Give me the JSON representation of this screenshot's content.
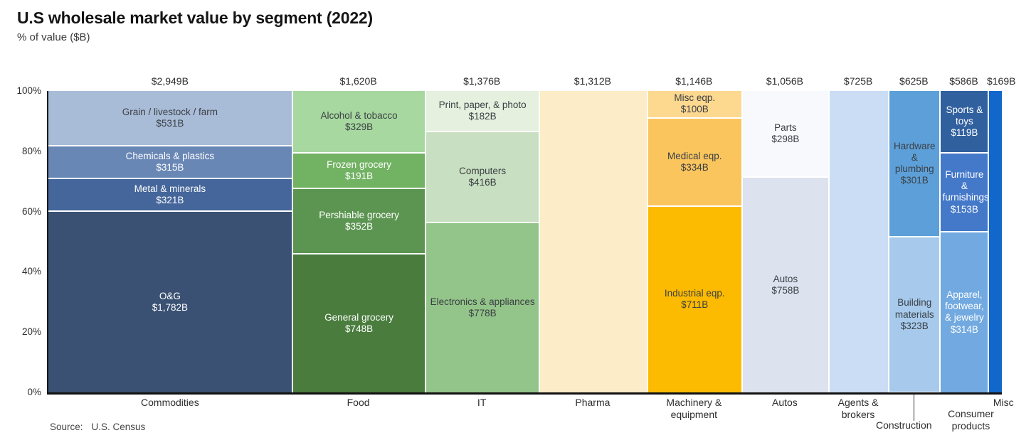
{
  "title": "U.S wholesale market value by segment (2022)",
  "subtitle": "% of value ($B)",
  "source": {
    "label": "Source:",
    "value": "U.S. Census"
  },
  "chart_data": {
    "type": "mekko",
    "unit": "$B",
    "ylabel": "% of value ($B)",
    "ylim": [
      0,
      100
    ],
    "grid": false,
    "y_ticks": [
      "100%",
      "80%",
      "60%",
      "40%",
      "20%",
      "0%"
    ],
    "text_dark": "#3a3f44",
    "text_light": "#ffffff",
    "columns": [
      {
        "category": "Commodities",
        "axis_label": "Commodities",
        "axis_row": 1,
        "total": 2949,
        "total_label": "$2,949B",
        "segments": [
          {
            "label": "Grain / livestock / farm",
            "value": 531,
            "value_label": "$531B",
            "color": "#a9bcd7",
            "text": "dark"
          },
          {
            "label": "Chemicals & plastics",
            "value": 315,
            "value_label": "$315B",
            "color": "#6987b5",
            "text": "light"
          },
          {
            "label": "Metal & minerals",
            "value": 321,
            "value_label": "$321B",
            "color": "#45669b",
            "text": "light"
          },
          {
            "label": "O&G",
            "value": 1782,
            "value_label": "$1,782B",
            "color": "#3a5173",
            "text": "light"
          }
        ]
      },
      {
        "category": "Food",
        "axis_label": "Food",
        "axis_row": 1,
        "total": 1620,
        "total_label": "$1,620B",
        "segments": [
          {
            "label": "Alcohol & tobacco",
            "value": 329,
            "value_label": "$329B",
            "color": "#a7d89f",
            "text": "dark"
          },
          {
            "label": "Frozen grocery",
            "value": 191,
            "value_label": "$191B",
            "color": "#72b263",
            "text": "light"
          },
          {
            "label": "Pershiable grocery",
            "value": 352,
            "value_label": "$352B",
            "color": "#5c9551",
            "text": "light"
          },
          {
            "label": "General grocery",
            "value": 748,
            "value_label": "$748B",
            "color": "#497c3d",
            "text": "light"
          }
        ]
      },
      {
        "category": "IT",
        "axis_label": "IT",
        "axis_row": 1,
        "total": 1376,
        "total_label": "$1,376B",
        "segments": [
          {
            "label": "Print, paper, & photo",
            "value": 182,
            "value_label": "$182B",
            "color": "#e5f0df",
            "text": "dark"
          },
          {
            "label": "Computers",
            "value": 416,
            "value_label": "$416B",
            "color": "#c8dfc1",
            "text": "dark"
          },
          {
            "label": "Electronics & appliances",
            "value": 778,
            "value_label": "$778B",
            "color": "#93c489",
            "text": "dark"
          }
        ]
      },
      {
        "category": "Pharma",
        "axis_label": "Pharma",
        "axis_row": 1,
        "total": 1312,
        "total_label": "$1,312B",
        "segments": [
          {
            "label": "",
            "value": 1312,
            "value_label": "",
            "color": "#fdecc8",
            "text": "dark"
          }
        ]
      },
      {
        "category": "Machinery & equipment",
        "axis_label": "Machinery &\nequipment",
        "axis_row": 1,
        "total": 1146,
        "total_label": "$1,146B",
        "segments": [
          {
            "label": "Misc eqp.",
            "value": 100,
            "value_label": "$100B",
            "color": "#fdd88f",
            "text": "dark"
          },
          {
            "label": "Medical eqp.",
            "value": 334,
            "value_label": "$334B",
            "color": "#fbc55e",
            "text": "dark"
          },
          {
            "label": "Industrial eqp.",
            "value": 711,
            "value_label": "$711B",
            "color": "#fcba00",
            "text": "dark"
          }
        ]
      },
      {
        "category": "Autos",
        "axis_label": "Autos",
        "axis_row": 1,
        "total": 1056,
        "total_label": "$1,056B",
        "segments": [
          {
            "label": "Parts",
            "value": 298,
            "value_label": "$298B",
            "color": "#f7f9fc",
            "text": "dark"
          },
          {
            "label": "Autos",
            "value": 758,
            "value_label": "$758B",
            "color": "#dce2ee",
            "text": "dark"
          }
        ]
      },
      {
        "category": "Agents & brokers",
        "axis_label": "Agents &\nbrokers",
        "axis_row": 1,
        "total": 725,
        "total_label": "$725B",
        "segments": [
          {
            "label": "",
            "value": 725,
            "value_label": "",
            "color": "#caddf4",
            "text": "dark"
          }
        ]
      },
      {
        "category": "Construction",
        "axis_label": "Construction",
        "axis_row": 3,
        "axis_dx": -14,
        "leader": true,
        "total": 625,
        "total_label": "$625B",
        "segments": [
          {
            "label": "Hardware & plumbing",
            "value": 301,
            "value_label": "$301B",
            "color": "#5da0d9",
            "text": "dark"
          },
          {
            "label": "Building materials",
            "value": 323,
            "value_label": "$323B",
            "color": "#a7caec",
            "text": "dark"
          }
        ]
      },
      {
        "category": "Consumer products",
        "axis_label": "Consumer\nproducts",
        "axis_row": 2,
        "axis_dx": 10,
        "total": 586,
        "total_label": "$586B",
        "segments": [
          {
            "label": "Sports & toys",
            "value": 119,
            "value_label": "$119B",
            "color": "#31609f",
            "text": "light"
          },
          {
            "label": "Furniture & furnishings",
            "value": 153,
            "value_label": "$153B",
            "color": "#4478c8",
            "text": "light"
          },
          {
            "label": "Apparel, footwear, & jewelry",
            "value": 314,
            "value_label": "$314B",
            "color": "#71a9e0",
            "text": "light"
          }
        ]
      },
      {
        "category": "Misc",
        "axis_label": "Misc",
        "axis_row": 1,
        "axis_dx": 12,
        "total_dx": 9,
        "total": 169,
        "total_label": "$169B",
        "segments": [
          {
            "label": "",
            "value": 169,
            "value_label": "",
            "color": "#1267cb",
            "text": "light"
          }
        ]
      }
    ]
  }
}
